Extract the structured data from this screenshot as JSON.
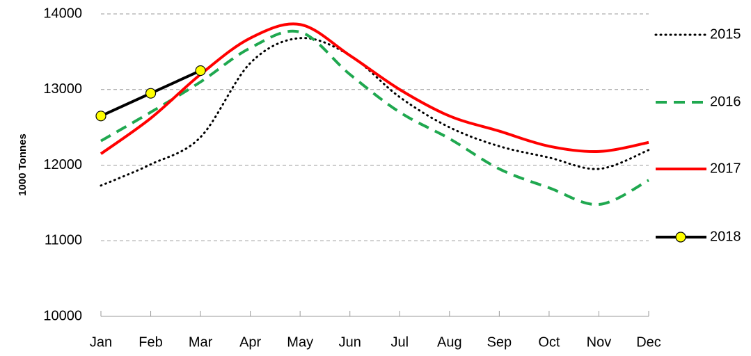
{
  "chart_data": {
    "type": "line",
    "y_label": "1000 Tonnes",
    "categories": [
      "Jan",
      "Feb",
      "Mar",
      "Apr",
      "May",
      "Jun",
      "Jul",
      "Aug",
      "Sep",
      "Oct",
      "Nov",
      "Dec"
    ],
    "series": [
      {
        "name": "2015",
        "color": "#000000",
        "dash": "dotted",
        "values": [
          11730,
          12010,
          12370,
          13350,
          13680,
          13450,
          12900,
          12500,
          12250,
          12100,
          11950,
          12200
        ]
      },
      {
        "name": "2016",
        "color": "#1fa84f",
        "dash": "dashed",
        "values": [
          12320,
          12700,
          13100,
          13550,
          13760,
          13200,
          12700,
          12350,
          11950,
          11700,
          11480,
          11800
        ]
      },
      {
        "name": "2017",
        "color": "#ff0000",
        "dash": "solid",
        "values": [
          12150,
          12620,
          13200,
          13680,
          13860,
          13450,
          13000,
          12650,
          12450,
          12250,
          12180,
          12300
        ]
      },
      {
        "name": "2018",
        "color": "#000000",
        "dash": "solid",
        "marker": "#ffff00",
        "smooth": false,
        "values": [
          12650,
          12950,
          13250,
          null,
          null,
          null,
          null,
          null,
          null,
          null,
          null,
          null
        ]
      }
    ],
    "ylim": [
      10000,
      14000
    ],
    "yticks": [
      10000,
      11000,
      12000,
      13000,
      14000
    ],
    "grid": true,
    "legend": "right"
  }
}
